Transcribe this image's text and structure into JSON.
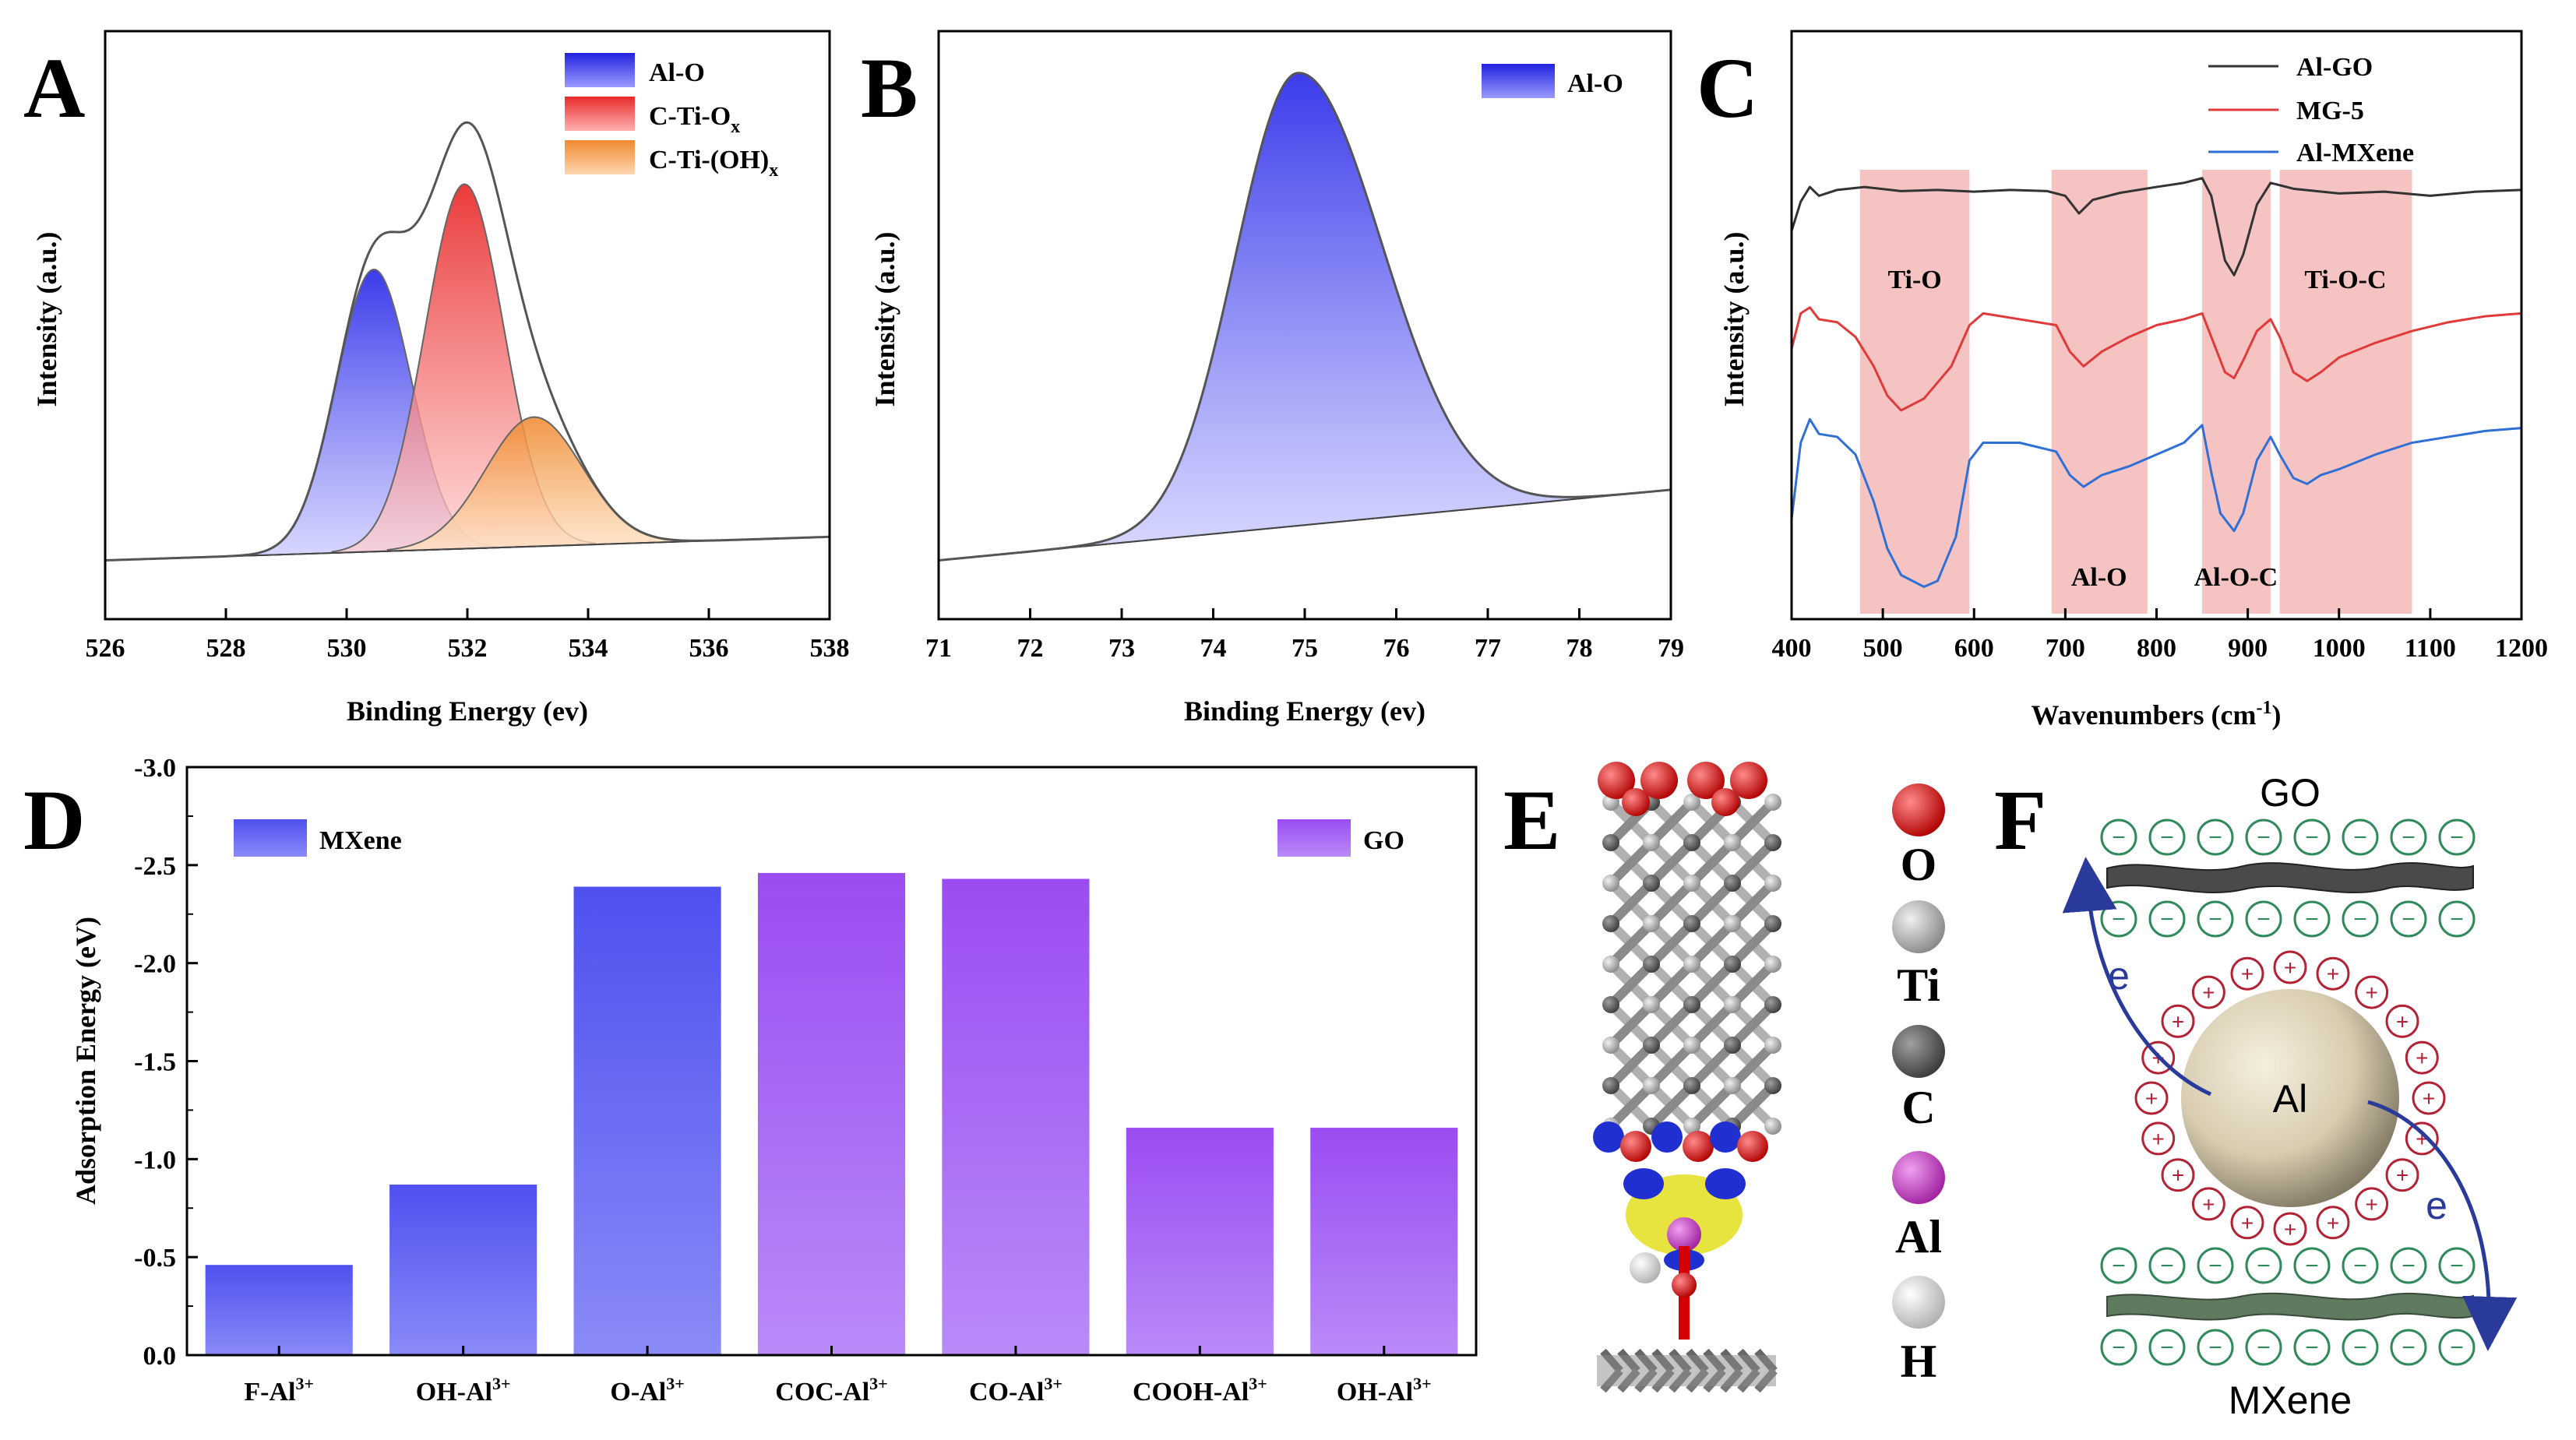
{
  "panels": {
    "A": {
      "letter": "A"
    },
    "B": {
      "letter": "B"
    },
    "C": {
      "letter": "C"
    },
    "D": {
      "letter": "D"
    },
    "E": {
      "letter": "E"
    },
    "F": {
      "letter": "F"
    }
  },
  "colors": {
    "blue": "#3a3fe8",
    "red": "#e8333a",
    "orange": "#f29a45",
    "purple": "#a554f0",
    "pink": "#f4b4b4",
    "envelope": "#555555",
    "go_line": "#333333",
    "mg_line": "#e03a3a",
    "mx_line": "#2f6fd6",
    "anion": "#2e8a5a",
    "cation": "#b22234",
    "arrow": "#2a3a9a"
  },
  "chart_data": [
    {
      "id": "A",
      "type": "area",
      "xlabel": "Binding Energy (ev)",
      "ylabel": "Intensity (a.u.)",
      "xlim": [
        526,
        538
      ],
      "xticks": [
        "526",
        "528",
        "530",
        "532",
        "534",
        "536",
        "538"
      ],
      "baseline": {
        "x": [
          526,
          538
        ],
        "y": [
          0.1,
          0.14
        ]
      },
      "series": [
        {
          "name": "Al-O",
          "color": "blue",
          "center": 530.45,
          "amplitude": 0.48,
          "sigma": 0.62
        },
        {
          "name": "C-Ti-Ox",
          "color": "red",
          "center": 531.95,
          "amplitude": 0.62,
          "sigma": 0.65
        },
        {
          "name": "C-Ti-(OH)x",
          "color": "orange",
          "center": 533.1,
          "amplitude": 0.22,
          "sigma": 0.8
        }
      ],
      "legend": [
        {
          "main": "Al-O",
          "sub": ""
        },
        {
          "main": "C-Ti-O",
          "sub": "x"
        },
        {
          "main": "C-Ti-(OH)",
          "sub": "x"
        }
      ],
      "legend_position": "top-right"
    },
    {
      "id": "B",
      "type": "area",
      "xlabel": "Binding Energy (ev)",
      "ylabel": "Intensity (a.u.)",
      "xlim": [
        71,
        79
      ],
      "xticks": [
        "71",
        "72",
        "73",
        "74",
        "75",
        "76",
        "77",
        "78",
        "79"
      ],
      "baseline": {
        "x": [
          71,
          79
        ],
        "y": [
          0.1,
          0.22
        ]
      },
      "series": [
        {
          "name": "Al-O",
          "color": "blue",
          "center": 74.92,
          "amplitude": 0.77,
          "sigma_left": 0.68,
          "sigma_right": 0.92
        }
      ],
      "legend": [
        {
          "main": "Al-O",
          "sub": ""
        }
      ],
      "legend_position": "top-right"
    },
    {
      "id": "C",
      "type": "line",
      "xlabel": "Wavenumbers (cm",
      "xlabel_sup": "-1",
      "xlabel_end": ")",
      "ylabel": "Intensity (a.u.)",
      "xlim": [
        400,
        1200
      ],
      "xticks": [
        "400",
        "500",
        "600",
        "700",
        "800",
        "900",
        "1000",
        "1100",
        "1200"
      ],
      "bands": [
        {
          "range": [
            475,
            595
          ],
          "label": "Ti-O",
          "label_x": 535,
          "label_pos": "top"
        },
        {
          "range": [
            685,
            790
          ],
          "label": "Al-O",
          "label_x": 737,
          "label_pos": "bottom"
        },
        {
          "range": [
            850,
            925
          ],
          "label": "Al-O-C",
          "label_x": 887,
          "label_pos": "bottom"
        },
        {
          "range": [
            935,
            1080
          ],
          "label": "Ti-O-C",
          "label_x": 1007,
          "label_pos": "top"
        }
      ],
      "series": [
        {
          "name": "Al-GO",
          "color": "go_line",
          "points": [
            [
              400,
              0.66
            ],
            [
              410,
              0.71
            ],
            [
              420,
              0.735
            ],
            [
              430,
              0.72
            ],
            [
              450,
              0.73
            ],
            [
              480,
              0.735
            ],
            [
              520,
              0.728
            ],
            [
              560,
              0.73
            ],
            [
              600,
              0.727
            ],
            [
              640,
              0.73
            ],
            [
              680,
              0.728
            ],
            [
              700,
              0.72
            ],
            [
              715,
              0.69
            ],
            [
              730,
              0.713
            ],
            [
              760,
              0.725
            ],
            [
              800,
              0.735
            ],
            [
              830,
              0.742
            ],
            [
              850,
              0.75
            ],
            [
              860,
              0.72
            ],
            [
              875,
              0.61
            ],
            [
              885,
              0.585
            ],
            [
              895,
              0.62
            ],
            [
              910,
              0.705
            ],
            [
              925,
              0.742
            ],
            [
              950,
              0.732
            ],
            [
              1000,
              0.724
            ],
            [
              1050,
              0.727
            ],
            [
              1100,
              0.72
            ],
            [
              1150,
              0.727
            ],
            [
              1200,
              0.73
            ]
          ]
        },
        {
          "name": "MG-5",
          "color": "mg_line",
          "points": [
            [
              400,
              0.46
            ],
            [
              410,
              0.52
            ],
            [
              420,
              0.53
            ],
            [
              430,
              0.51
            ],
            [
              450,
              0.505
            ],
            [
              470,
              0.48
            ],
            [
              490,
              0.43
            ],
            [
              505,
              0.38
            ],
            [
              520,
              0.355
            ],
            [
              545,
              0.375
            ],
            [
              575,
              0.43
            ],
            [
              595,
              0.5
            ],
            [
              610,
              0.52
            ],
            [
              650,
              0.51
            ],
            [
              690,
              0.5
            ],
            [
              705,
              0.455
            ],
            [
              720,
              0.43
            ],
            [
              740,
              0.455
            ],
            [
              770,
              0.48
            ],
            [
              800,
              0.5
            ],
            [
              830,
              0.51
            ],
            [
              850,
              0.52
            ],
            [
              860,
              0.48
            ],
            [
              875,
              0.42
            ],
            [
              885,
              0.41
            ],
            [
              895,
              0.44
            ],
            [
              910,
              0.49
            ],
            [
              925,
              0.51
            ],
            [
              935,
              0.48
            ],
            [
              950,
              0.42
            ],
            [
              965,
              0.405
            ],
            [
              980,
              0.42
            ],
            [
              1000,
              0.445
            ],
            [
              1040,
              0.47
            ],
            [
              1080,
              0.49
            ],
            [
              1120,
              0.505
            ],
            [
              1160,
              0.515
            ],
            [
              1200,
              0.52
            ]
          ]
        },
        {
          "name": "Al-MXene",
          "color": "mx_line",
          "points": [
            [
              400,
              0.17
            ],
            [
              410,
              0.3
            ],
            [
              420,
              0.34
            ],
            [
              430,
              0.315
            ],
            [
              450,
              0.31
            ],
            [
              470,
              0.28
            ],
            [
              490,
              0.2
            ],
            [
              505,
              0.12
            ],
            [
              520,
              0.075
            ],
            [
              545,
              0.055
            ],
            [
              560,
              0.065
            ],
            [
              580,
              0.14
            ],
            [
              595,
              0.27
            ],
            [
              610,
              0.3
            ],
            [
              650,
              0.3
            ],
            [
              690,
              0.285
            ],
            [
              705,
              0.245
            ],
            [
              720,
              0.225
            ],
            [
              740,
              0.245
            ],
            [
              770,
              0.26
            ],
            [
              800,
              0.28
            ],
            [
              830,
              0.3
            ],
            [
              850,
              0.33
            ],
            [
              860,
              0.25
            ],
            [
              870,
              0.18
            ],
            [
              885,
              0.15
            ],
            [
              895,
              0.18
            ],
            [
              910,
              0.27
            ],
            [
              925,
              0.31
            ],
            [
              935,
              0.28
            ],
            [
              950,
              0.24
            ],
            [
              965,
              0.23
            ],
            [
              980,
              0.245
            ],
            [
              1000,
              0.255
            ],
            [
              1040,
              0.28
            ],
            [
              1080,
              0.3
            ],
            [
              1120,
              0.31
            ],
            [
              1160,
              0.32
            ],
            [
              1200,
              0.325
            ]
          ]
        }
      ],
      "legend": [
        {
          "main": "Al-GO"
        },
        {
          "main": "MG-5"
        },
        {
          "main": "Al-MXene"
        }
      ],
      "legend_position": "top-right"
    },
    {
      "id": "D",
      "type": "bar",
      "ylabel": "Adsorption Energy (eV)",
      "ylim": [
        0,
        -3.0
      ],
      "yticks": [
        "0.0",
        "-0.5",
        "-1.0",
        "-1.5",
        "-2.0",
        "-2.5",
        "-3.0"
      ],
      "categories": [
        {
          "main": "F-Al",
          "sup": "3+"
        },
        {
          "main": "OH-Al",
          "sup": "3+"
        },
        {
          "main": "O-Al",
          "sup": "3+"
        },
        {
          "main": "COC-Al",
          "sup": "3+"
        },
        {
          "main": "CO-Al",
          "sup": "3+"
        },
        {
          "main": "COOH-Al",
          "sup": "3+"
        },
        {
          "main": "OH-Al",
          "sup": "3+"
        }
      ],
      "values": [
        -0.46,
        -0.87,
        -2.39,
        -2.46,
        -2.43,
        -1.16,
        -1.16
      ],
      "groups": [
        "MXene",
        "MXene",
        "MXene",
        "GO",
        "GO",
        "GO",
        "GO"
      ],
      "legend": [
        {
          "main": "MXene"
        },
        {
          "main": "GO"
        }
      ]
    }
  ],
  "panel_E": {
    "atoms": [
      {
        "symbol": "O",
        "color": "#d40000"
      },
      {
        "symbol": "Ti",
        "color": "#a8a8a8"
      },
      {
        "symbol": "C",
        "color": "#555555"
      },
      {
        "symbol": "Al",
        "color": "#c740c7"
      },
      {
        "symbol": "H",
        "color": "#e8e8e8"
      }
    ]
  },
  "panel_F": {
    "top_label": "GO",
    "bottom_label": "MXene",
    "center_label": "Al",
    "electron_label_left": "e",
    "electron_label_right": "e",
    "anion_symbol": "−",
    "cation_symbol": "+"
  }
}
